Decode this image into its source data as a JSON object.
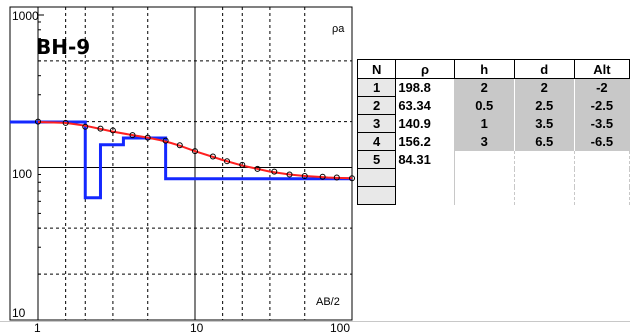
{
  "plot": {
    "title": "BH-9",
    "y_axis_label": "ρa",
    "x_axis_label": "AB/2",
    "x_ticks": [
      "1",
      "10",
      "100"
    ],
    "y_ticks": [
      "1000",
      "100",
      "10"
    ],
    "colors": {
      "model_line": "#1428ff",
      "fit_curve": "#ff2020",
      "observed_points": "#000000",
      "grid": "#000000"
    }
  },
  "chart_data": {
    "type": "line",
    "xscale": "log",
    "yscale": "log",
    "xlim": [
      1,
      100
    ],
    "ylim": [
      10,
      1000
    ],
    "grid": true,
    "series": [
      {
        "kind": "model",
        "x": [
          1,
          2,
          2,
          2.5,
          2.5,
          3.5,
          3.5,
          6.5,
          6.5,
          100
        ],
        "y": [
          198.8,
          198.8,
          63.34,
          63.34,
          140.9,
          140.9,
          156.2,
          156.2,
          84.31,
          84.31
        ]
      },
      {
        "kind": "fit",
        "x": [
          1,
          1.5,
          2,
          3,
          4,
          5,
          6,
          7,
          8,
          10,
          15,
          20,
          30,
          40,
          50,
          60,
          70,
          80,
          100
        ],
        "y": [
          198.8,
          196,
          188,
          172,
          163,
          157,
          151,
          145,
          139,
          128,
          112,
          103,
          94,
          90,
          88,
          87,
          86,
          85.5,
          85
        ]
      },
      {
        "kind": "observed",
        "x": [
          1,
          1.5,
          2,
          2.5,
          3,
          4,
          5,
          6.5,
          8,
          10,
          13,
          16,
          20,
          25,
          32,
          40,
          50,
          65,
          80,
          100
        ],
        "y": [
          200,
          196,
          185,
          180,
          175,
          163,
          157,
          150,
          140,
          128,
          118,
          110,
          104,
          98,
          94,
          90,
          88,
          87,
          86,
          85
        ]
      }
    ]
  },
  "table": {
    "headers": [
      "N",
      "ρ",
      "h",
      "d",
      "Alt"
    ],
    "rows": [
      {
        "n": "1",
        "rho": "198.8",
        "h": "2",
        "d": "2",
        "alt": "-2"
      },
      {
        "n": "2",
        "rho": "63.34",
        "h": "0.5",
        "d": "2.5",
        "alt": "-2.5"
      },
      {
        "n": "3",
        "rho": "140.9",
        "h": "1",
        "d": "3.5",
        "alt": "-3.5"
      },
      {
        "n": "4",
        "rho": "156.2",
        "h": "3",
        "d": "6.5",
        "alt": "-6.5"
      },
      {
        "n": "5",
        "rho": "84.31",
        "h": "",
        "d": "",
        "alt": ""
      },
      {
        "n": "",
        "rho": "",
        "h": "",
        "d": "",
        "alt": ""
      },
      {
        "n": "",
        "rho": "",
        "h": "",
        "d": "",
        "alt": ""
      }
    ]
  }
}
